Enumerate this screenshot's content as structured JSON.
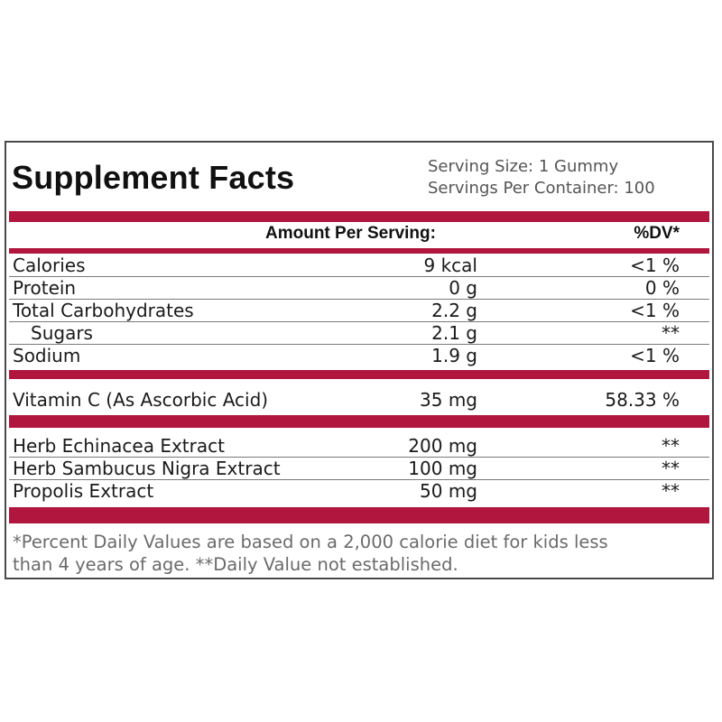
{
  "title": "Supplement Facts",
  "serving_size_label": "Serving Size:",
  "serving_size_value": "1 Gummy",
  "servings_per_container_label": "Servings Per Container:",
  "servings_per_container_value": "100",
  "header": {
    "amount": "Amount Per Serving:",
    "dv": "%DV*"
  },
  "nutrients": [
    {
      "name": "Calories",
      "amount": "9 kcal",
      "dv": "<1 %"
    },
    {
      "name": "Protein",
      "amount": "0 g",
      "dv": "0 %"
    },
    {
      "name": "Total Carbohydrates",
      "amount": "2.2 g",
      "dv": "<1 %"
    },
    {
      "name": "Sugars",
      "amount": "2.1 g",
      "dv": "**"
    },
    {
      "name": "Sodium",
      "amount": "1.9 g",
      "dv": "<1 %"
    }
  ],
  "vitamins": [
    {
      "name": "Vitamin C (As Ascorbic Acid)",
      "amount": "35 mg",
      "dv": "58.33 %"
    }
  ],
  "extracts": [
    {
      "name": "Herb Echinacea Extract",
      "amount": "200 mg",
      "dv": "**"
    },
    {
      "name": "Herb Sambucus Nigra Extract",
      "amount": "100 mg",
      "dv": "**"
    },
    {
      "name": "Propolis Extract",
      "amount": "50 mg",
      "dv": "**"
    }
  ],
  "footnote_line1": "*Percent Daily Values are based on a 2,000 calorie diet for kids less",
  "footnote_line2": "than 4 years of age. **Daily Value not established.",
  "colors": {
    "accent": "#b0163e",
    "border": "#4a4a4a"
  }
}
